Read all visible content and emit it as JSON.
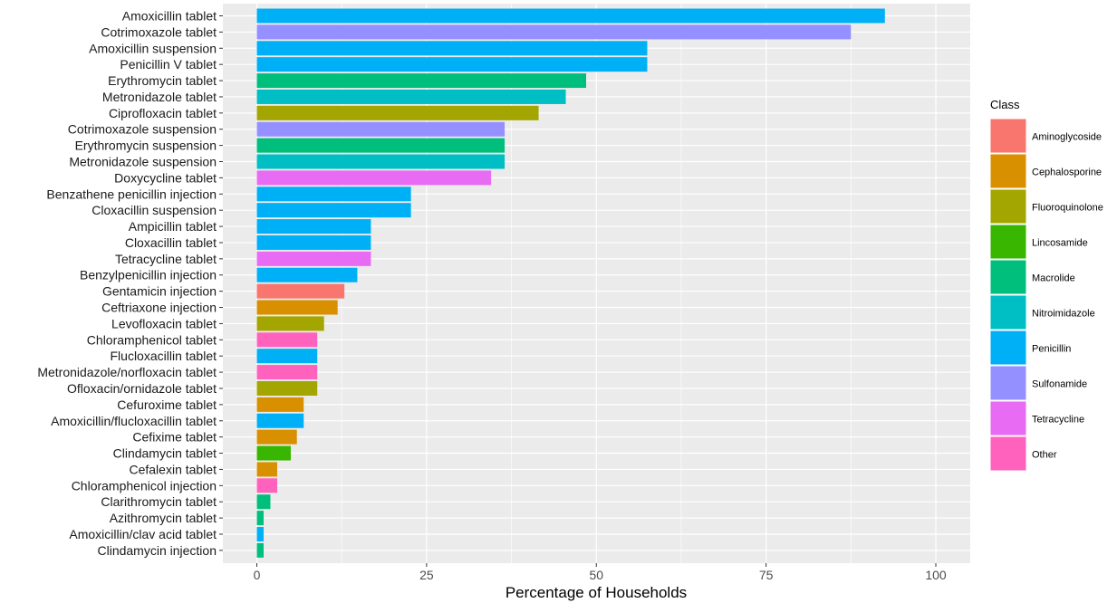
{
  "chart_data": {
    "type": "bar",
    "orientation": "horizontal",
    "xlabel": "Percentage of Households",
    "xlim": [
      0,
      100
    ],
    "x_ticks": [
      0,
      25,
      50,
      75,
      100
    ],
    "grid": true,
    "legend": {
      "title": "Class",
      "position": "right",
      "entries": [
        {
          "name": "Aminoglycoside",
          "color": "#F8766D"
        },
        {
          "name": "Cephalosporine",
          "color": "#D89000"
        },
        {
          "name": "Fluoroquinolone",
          "color": "#A3A500"
        },
        {
          "name": "Lincosamide",
          "color": "#39B600"
        },
        {
          "name": "Macrolide",
          "color": "#00BF7D"
        },
        {
          "name": "Nitroimidazole",
          "color": "#00BFC4"
        },
        {
          "name": "Penicillin",
          "color": "#00B0F6"
        },
        {
          "name": "Sulfonamide",
          "color": "#9590FF"
        },
        {
          "name": "Tetracycline",
          "color": "#E76BF3"
        },
        {
          "name": "Other",
          "color": "#FF62BC"
        }
      ]
    },
    "bars": [
      {
        "label": "Amoxicillin tablet",
        "value": 92.5,
        "class": "Penicillin"
      },
      {
        "label": "Cotrimoxazole tablet",
        "value": 87.5,
        "class": "Sulfonamide"
      },
      {
        "label": "Amoxicillin suspension",
        "value": 57.5,
        "class": "Penicillin"
      },
      {
        "label": "Penicillin V tablet",
        "value": 57.5,
        "class": "Penicillin"
      },
      {
        "label": "Erythromycin tablet",
        "value": 48.5,
        "class": "Macrolide"
      },
      {
        "label": "Metronidazole tablet",
        "value": 45.5,
        "class": "Nitroimidazole"
      },
      {
        "label": "Ciprofloxacin tablet",
        "value": 41.5,
        "class": "Fluoroquinolone"
      },
      {
        "label": "Cotrimoxazole suspension",
        "value": 36.5,
        "class": "Sulfonamide"
      },
      {
        "label": "Erythromycin suspension",
        "value": 36.5,
        "class": "Macrolide"
      },
      {
        "label": "Metronidazole suspension",
        "value": 36.5,
        "class": "Nitroimidazole"
      },
      {
        "label": "Doxycycline tablet",
        "value": 34.5,
        "class": "Tetracycline"
      },
      {
        "label": "Benzathene penicillin injection",
        "value": 22.7,
        "class": "Penicillin"
      },
      {
        "label": "Cloxacillin suspension",
        "value": 22.7,
        "class": "Penicillin"
      },
      {
        "label": "Ampicillin tablet",
        "value": 16.8,
        "class": "Penicillin"
      },
      {
        "label": "Cloxacillin tablet",
        "value": 16.8,
        "class": "Penicillin"
      },
      {
        "label": "Tetracycline tablet",
        "value": 16.8,
        "class": "Tetracycline"
      },
      {
        "label": "Benzylpenicillin injection",
        "value": 14.8,
        "class": "Penicillin"
      },
      {
        "label": "Gentamicin injection",
        "value": 12.9,
        "class": "Aminoglycoside"
      },
      {
        "label": "Ceftriaxone injection",
        "value": 11.9,
        "class": "Cephalosporine"
      },
      {
        "label": "Levofloxacin tablet",
        "value": 9.9,
        "class": "Fluoroquinolone"
      },
      {
        "label": "Chloramphenicol tablet",
        "value": 8.9,
        "class": "Other"
      },
      {
        "label": "Flucloxacillin tablet",
        "value": 8.9,
        "class": "Penicillin"
      },
      {
        "label": "Metronidazole/norfloxacin tablet",
        "value": 8.9,
        "class": "Other"
      },
      {
        "label": "Ofloxacin/ornidazole tablet",
        "value": 8.9,
        "class": "Fluoroquinolone"
      },
      {
        "label": "Cefuroxime tablet",
        "value": 6.9,
        "class": "Cephalosporine"
      },
      {
        "label": "Amoxicillin/flucloxacillin tablet",
        "value": 6.9,
        "class": "Penicillin"
      },
      {
        "label": "Cefixime tablet",
        "value": 5.9,
        "class": "Cephalosporine"
      },
      {
        "label": "Clindamycin tablet",
        "value": 5.0,
        "class": "Lincosamide"
      },
      {
        "label": "Cefalexin tablet",
        "value": 3.0,
        "class": "Cephalosporine"
      },
      {
        "label": "Chloramphenicol injection",
        "value": 3.0,
        "class": "Other"
      },
      {
        "label": "Clarithromycin tablet",
        "value": 2.0,
        "class": "Macrolide"
      },
      {
        "label": "Azithromycin tablet",
        "value": 1.0,
        "class": "Macrolide"
      },
      {
        "label": "Amoxicillin/clav acid tablet",
        "value": 1.0,
        "class": "Penicillin"
      },
      {
        "label": "Clindamycin injection",
        "value": 1.0,
        "class": "Macrolide"
      }
    ]
  }
}
